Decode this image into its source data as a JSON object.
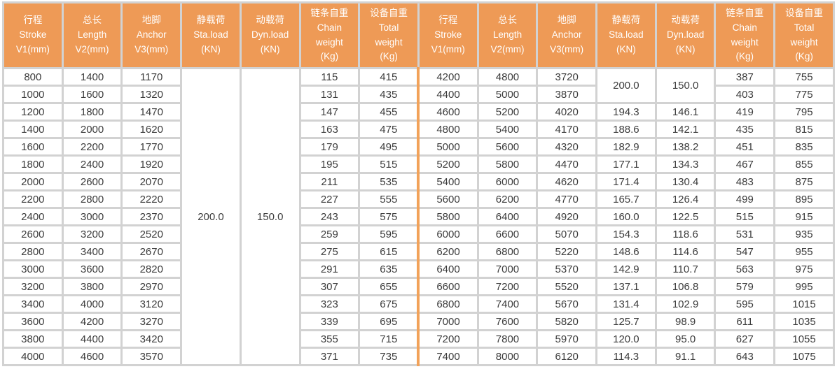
{
  "table": {
    "colors": {
      "header_bg": "#EE9A56",
      "header_text": "#FFFFFF",
      "grid_border": "#D2D2D2",
      "half_divider": "#F2A259",
      "cell_text": "#3C3C3C"
    },
    "headers": [
      {
        "name": "stroke",
        "lines": [
          "行程",
          "Stroke",
          "V1(mm)"
        ]
      },
      {
        "name": "length",
        "lines": [
          "总长",
          "Length",
          "V2(mm)"
        ]
      },
      {
        "name": "anchor",
        "lines": [
          "地脚",
          "Anchor",
          "V3(mm)"
        ]
      },
      {
        "name": "sta-load",
        "lines": [
          "静载荷",
          "Sta.load",
          "(KN)"
        ]
      },
      {
        "name": "dyn-load",
        "lines": [
          "动载荷",
          "Dyn.load",
          "(KN)"
        ]
      },
      {
        "name": "chain-weight",
        "lines": [
          "链条自重",
          "Chain",
          "weight",
          "(Kg)"
        ]
      },
      {
        "name": "total-weight",
        "lines": [
          "设备自重",
          "Total",
          "weight",
          "(Kg)"
        ]
      }
    ],
    "left": {
      "columns": [
        "stroke",
        "length",
        "anchor",
        "chain_weight",
        "total_weight"
      ],
      "sta_load_merged": "200.0",
      "dyn_load_merged": "150.0",
      "rows": [
        [
          "800",
          "1400",
          "1170",
          "115",
          "415"
        ],
        [
          "1000",
          "1600",
          "1320",
          "131",
          "435"
        ],
        [
          "1200",
          "1800",
          "1470",
          "147",
          "455"
        ],
        [
          "1400",
          "2000",
          "1620",
          "163",
          "475"
        ],
        [
          "1600",
          "2200",
          "1770",
          "179",
          "495"
        ],
        [
          "1800",
          "2400",
          "1920",
          "195",
          "515"
        ],
        [
          "2000",
          "2600",
          "2070",
          "211",
          "535"
        ],
        [
          "2200",
          "2800",
          "2220",
          "227",
          "555"
        ],
        [
          "2400",
          "3000",
          "2370",
          "243",
          "575"
        ],
        [
          "2600",
          "3200",
          "2520",
          "259",
          "595"
        ],
        [
          "2800",
          "3400",
          "2670",
          "275",
          "615"
        ],
        [
          "3000",
          "3600",
          "2820",
          "291",
          "635"
        ],
        [
          "3200",
          "3800",
          "2970",
          "307",
          "655"
        ],
        [
          "3400",
          "4000",
          "3120",
          "323",
          "675"
        ],
        [
          "3600",
          "4200",
          "3270",
          "339",
          "695"
        ],
        [
          "3800",
          "4400",
          "3420",
          "355",
          "715"
        ],
        [
          "4000",
          "4600",
          "3570",
          "371",
          "735"
        ]
      ]
    },
    "right": {
      "columns": [
        "stroke",
        "length",
        "anchor",
        "sta_load",
        "dyn_load",
        "chain_weight",
        "total_weight"
      ],
      "sta_load_merged_first_two_rows": "200.0",
      "dyn_load_merged_first_two_rows": "150.0",
      "rows": [
        [
          "4200",
          "4800",
          "3720",
          null,
          null,
          "387",
          "755"
        ],
        [
          "4400",
          "5000",
          "3870",
          null,
          null,
          "403",
          "775"
        ],
        [
          "4600",
          "5200",
          "4020",
          "194.3",
          "146.1",
          "419",
          "795"
        ],
        [
          "4800",
          "5400",
          "4170",
          "188.6",
          "142.1",
          "435",
          "815"
        ],
        [
          "5000",
          "5600",
          "4320",
          "182.9",
          "138.2",
          "451",
          "835"
        ],
        [
          "5200",
          "5800",
          "4470",
          "177.1",
          "134.3",
          "467",
          "855"
        ],
        [
          "5400",
          "6000",
          "4620",
          "171.4",
          "130.4",
          "483",
          "875"
        ],
        [
          "5600",
          "6200",
          "4770",
          "165.7",
          "126.4",
          "499",
          "895"
        ],
        [
          "5800",
          "6400",
          "4920",
          "160.0",
          "122.5",
          "515",
          "915"
        ],
        [
          "6000",
          "6600",
          "5070",
          "154.3",
          "118.6",
          "531",
          "935"
        ],
        [
          "6200",
          "6800",
          "5220",
          "148.6",
          "114.6",
          "547",
          "955"
        ],
        [
          "6400",
          "7000",
          "5370",
          "142.9",
          "110.7",
          "563",
          "975"
        ],
        [
          "6600",
          "7200",
          "5520",
          "137.1",
          "106.8",
          "579",
          "995"
        ],
        [
          "6800",
          "7400",
          "5670",
          "131.4",
          "102.9",
          "595",
          "1015"
        ],
        [
          "7000",
          "7600",
          "5820",
          "125.7",
          "98.9",
          "611",
          "1035"
        ],
        [
          "7200",
          "7800",
          "5970",
          "120.0",
          "95.0",
          "627",
          "1055"
        ],
        [
          "7400",
          "8000",
          "6120",
          "114.3",
          "91.1",
          "643",
          "1075"
        ]
      ]
    }
  }
}
